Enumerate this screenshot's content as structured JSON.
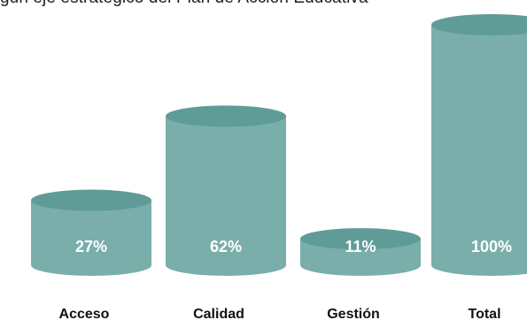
{
  "chart_data": {
    "type": "bar",
    "title": "gún eje estratégico del Plan de Acción Educativa",
    "categories": [
      "Acceso",
      "Calidad",
      "Gestión",
      "Total"
    ],
    "values": [
      27,
      62,
      11,
      100
    ],
    "value_labels": [
      "27%",
      "62%",
      "11%",
      "100%"
    ],
    "ylim": [
      0,
      100
    ],
    "grid": false,
    "legend": "none",
    "bar_style": "cylinder"
  },
  "colors": {
    "bar_body": "#79aeaa",
    "bar_top": "#5f9c97",
    "value_text": "#ffffff",
    "label_text": "#111111"
  }
}
